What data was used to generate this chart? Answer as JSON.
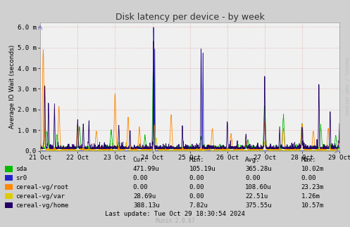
{
  "title": "Disk latency per device - by week",
  "ylabel": "Average IO Wait (seconds)",
  "bg_color": "#d0d0d0",
  "plot_bg": "#f0f0f0",
  "grid_color": "#ffb0b0",
  "ylim": [
    0,
    0.0062
  ],
  "ytick_vals": [
    0.0,
    0.001,
    0.002,
    0.003,
    0.004,
    0.005,
    0.006
  ],
  "ytick_labels": [
    "0.0",
    "1.0 m",
    "2.0 m",
    "3.0 m",
    "4.0 m",
    "5.0 m",
    "6.0 m"
  ],
  "xtick_labels": [
    "21 Oct",
    "22 Oct",
    "23 Oct",
    "24 Oct",
    "25 Oct",
    "26 Oct",
    "27 Oct",
    "28 Oct",
    "29 Oct"
  ],
  "series": [
    {
      "name": "sda",
      "color": "#00bb00"
    },
    {
      "name": "sr0",
      "color": "#2222cc"
    },
    {
      "name": "cereal-vg/root",
      "color": "#ff8800"
    },
    {
      "name": "cereal-vg/var",
      "color": "#ddcc00"
    },
    {
      "name": "cereal-vg/home",
      "color": "#220066"
    }
  ],
  "legend_data": [
    {
      "label": "sda",
      "cur": "471.99u",
      "min": "105.19u",
      "avg": "365.28u",
      "max": "10.02m"
    },
    {
      "label": "sr0",
      "cur": "0.00",
      "min": "0.00",
      "avg": "0.00",
      "max": "0.00"
    },
    {
      "label": "cereal-vg/root",
      "cur": "0.00",
      "min": "0.00",
      "avg": "108.60u",
      "max": "23.23m"
    },
    {
      "label": "cereal-vg/var",
      "cur": "28.69u",
      "min": "0.00",
      "avg": "22.51u",
      "max": "1.26m"
    },
    {
      "label": "cereal-vg/home",
      "cur": "388.13u",
      "min": "7.82u",
      "avg": "375.55u",
      "max": "10.57m"
    }
  ],
  "last_update": "Last update: Tue Oct 29 18:30:54 2024",
  "munin_version": "Munin 2.0.67",
  "rrdtool_label": "RRDTOOL / TOBI OETIKER"
}
